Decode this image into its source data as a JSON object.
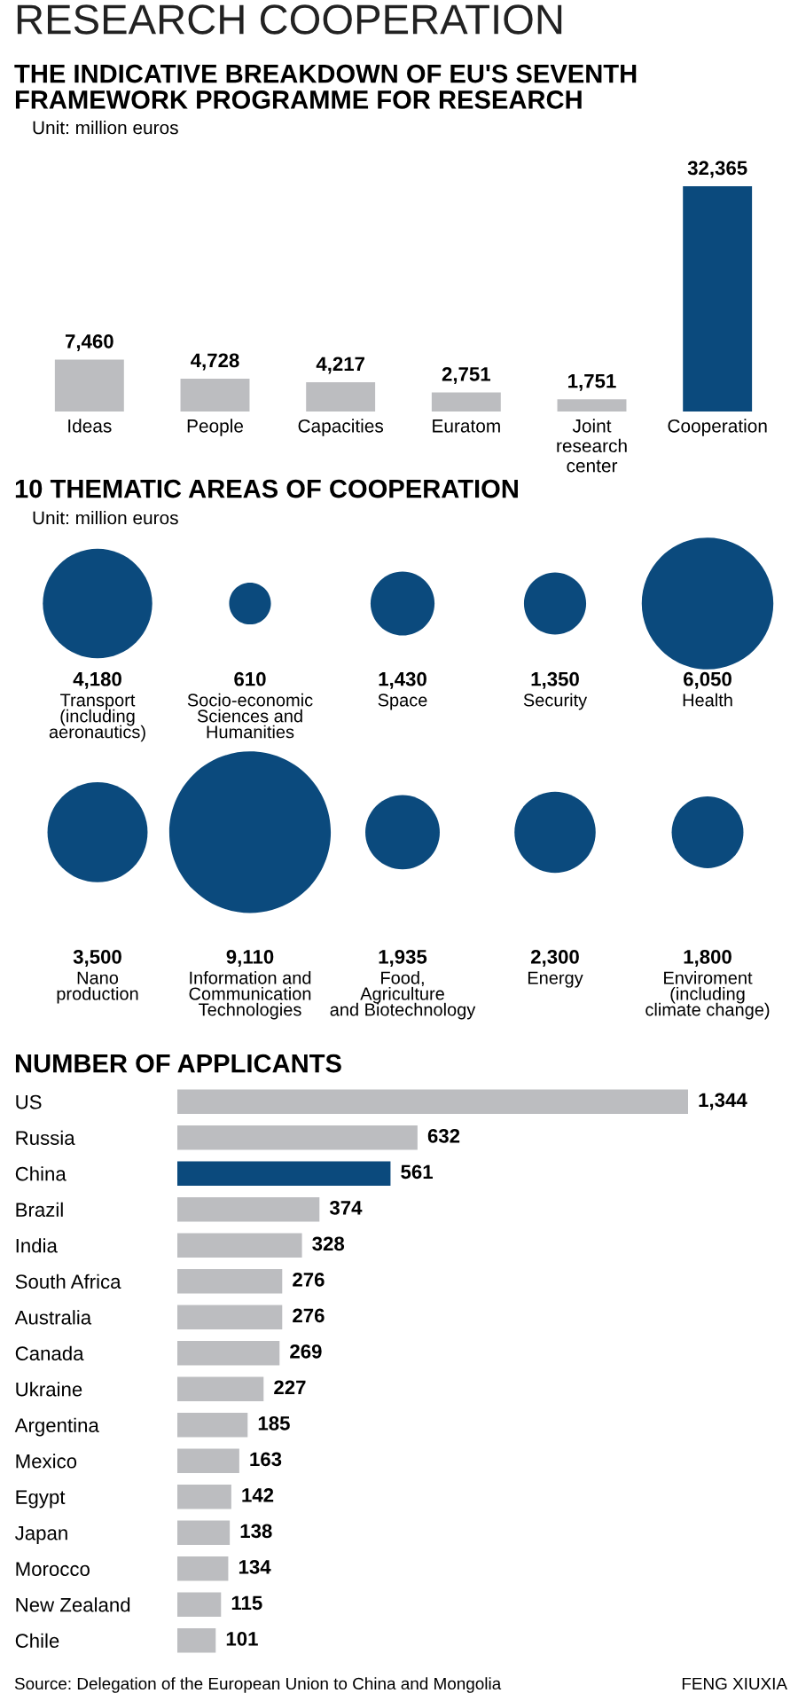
{
  "chart_data": [
    {
      "type": "bar",
      "title": "THE INDICATIVE BREAKDOWN OF EU'S SEVENTH\nFRAMEWORK PROGRAMME FOR RESEARCH",
      "subtitle": "Unit: million euros",
      "annotations": [
        "RESEARCH COOPERATION"
      ],
      "categories": [
        "Ideas",
        "People",
        "Capacities",
        "Euratom",
        "Joint\nresearch\ncenter",
        "Cooperation"
      ],
      "values": [
        7460,
        4728,
        4217,
        2751,
        1751,
        32365
      ],
      "value_labels": [
        "7,460",
        "4,728",
        "4,217",
        "2,751",
        "1,751",
        "32,365"
      ],
      "colors": [
        "#bcbdc0",
        "#bcbdc0",
        "#bcbdc0",
        "#bcbdc0",
        "#bcbdc0",
        "#0b4a7d"
      ]
    },
    {
      "type": "other",
      "title": "10 THEMATIC AREAS OF COOPERATION",
      "subtitle": "Unit: million euros",
      "categories": [
        "Transport\n(including\naeronautics)",
        "Socio-economic\nSciences and\nHumanities",
        "Space",
        "Security",
        "Health",
        "Nano\nproduction",
        "Information and\nCommunication\nTechnologies",
        "Food,\nAgriculture\nand Biotechnology",
        "Energy",
        "Enviroment\n(including\nclimate change)"
      ],
      "values": [
        4180,
        610,
        1430,
        1350,
        6050,
        3500,
        9110,
        1935,
        2300,
        1800
      ],
      "value_labels": [
        "4,180",
        "610",
        "1,430",
        "1,350",
        "6,050",
        "3,500",
        "9,110",
        "1,935",
        "2,300",
        "1,800"
      ],
      "color": "#0b4a7d"
    },
    {
      "type": "bar",
      "orientation": "horizontal",
      "title": "NUMBER OF APPLICANTS",
      "annotations": [
        "Source: Delegation of the European Union to China and Mongolia",
        "FENG XIUXIA"
      ],
      "categories": [
        "US",
        "Russia",
        "China",
        "Brazil",
        "India",
        "South Africa",
        "Australia",
        "Canada",
        "Ukraine",
        "Argentina",
        "Mexico",
        "Egypt",
        "Japan",
        "Morocco",
        "New Zealand",
        "Chile"
      ],
      "values": [
        1344,
        632,
        561,
        374,
        328,
        276,
        276,
        269,
        227,
        185,
        163,
        142,
        138,
        134,
        115,
        101
      ],
      "value_labels": [
        "1,344",
        "632",
        "561",
        "374",
        "328",
        "276",
        "276",
        "269",
        "227",
        "185",
        "163",
        "142",
        "138",
        "134",
        "115",
        "101"
      ],
      "colors": [
        "#bcbdc0",
        "#bcbdc0",
        "#0b4a7d",
        "#bcbdc0",
        "#bcbdc0",
        "#bcbdc0",
        "#bcbdc0",
        "#bcbdc0",
        "#bcbdc0",
        "#bcbdc0",
        "#bcbdc0",
        "#bcbdc0",
        "#bcbdc0",
        "#bcbdc0",
        "#bcbdc0",
        "#bcbdc0"
      ]
    }
  ]
}
